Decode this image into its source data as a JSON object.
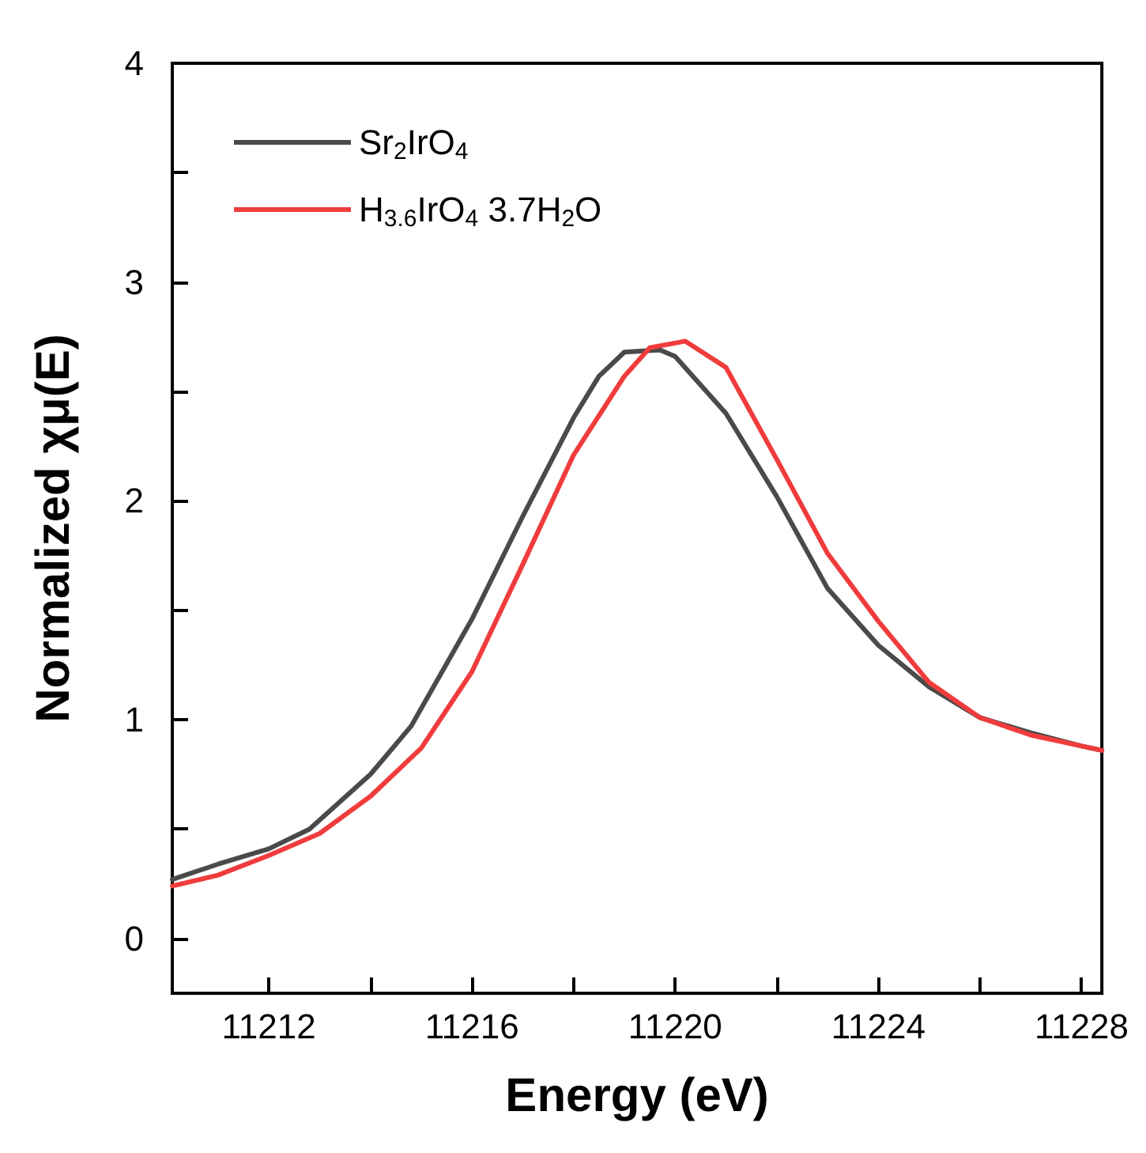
{
  "chart_data": {
    "type": "line",
    "xlabel": "Energy (eV)",
    "ylabel": "Normalized χμ(E)",
    "xlim": [
      11210.1,
      11228.4
    ],
    "ylim": [
      -0.25,
      4
    ],
    "xticks": [
      11212,
      {
        "value": 11214,
        "label": null
      },
      11216,
      {
        "value": 11218,
        "label": null
      },
      11220,
      {
        "value": 11222,
        "label": null
      },
      11224,
      {
        "value": 11226,
        "label": null
      },
      11228
    ],
    "yticks": [
      0,
      {
        "value": 0.5,
        "label": null
      },
      1,
      {
        "value": 1.5,
        "label": null
      },
      2,
      {
        "value": 2.5,
        "label": null
      },
      3,
      {
        "value": 3.5,
        "label": null
      },
      4
    ],
    "grid": false,
    "legend": "top left",
    "marker": "none",
    "line_style": "solid",
    "series": [
      {
        "name": "Sr$_{2}$IrO$_{4}$",
        "color": "#4a4a4a",
        "x": [
          11210.1,
          11211,
          11212,
          11212.8,
          11214,
          11214.8,
          11216,
          11217,
          11218,
          11218.5,
          11219,
          11219.7,
          11220,
          11221,
          11222,
          11223,
          11224,
          11225,
          11226,
          11227,
          11228,
          11228.4
        ],
        "values": [
          0.27,
          0.34,
          0.41,
          0.5,
          0.75,
          0.97,
          1.46,
          1.93,
          2.38,
          2.57,
          2.68,
          2.69,
          2.66,
          2.4,
          2.02,
          1.6,
          1.34,
          1.15,
          1.01,
          0.94,
          0.88,
          0.86
        ]
      },
      {
        "name": "H$_{3.6}$IrO$_{4}$ 3.7H$_{2}$O",
        "color": "#f03c3c",
        "x": [
          11210.1,
          11211,
          11212,
          11213,
          11214,
          11215,
          11216,
          11217,
          11218,
          11219,
          11219.5,
          11220.2,
          11221,
          11222,
          11223,
          11224,
          11225,
          11226,
          11227,
          11228,
          11228.4
        ],
        "values": [
          0.24,
          0.29,
          0.38,
          0.48,
          0.65,
          0.87,
          1.22,
          1.71,
          2.21,
          2.57,
          2.7,
          2.73,
          2.61,
          2.19,
          1.76,
          1.45,
          1.17,
          1.01,
          0.93,
          0.88,
          0.86
        ]
      }
    ]
  }
}
